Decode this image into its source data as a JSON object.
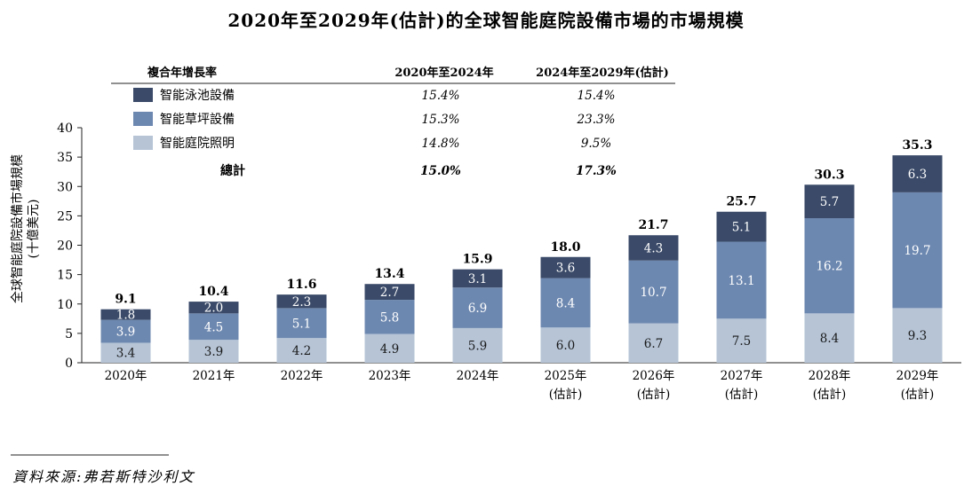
{
  "chart_data": {
    "type": "bar",
    "stacked": true,
    "title": "2020年至2029年(估計)的全球智能庭院設備市場的市場規模",
    "ylabel": "全球智能庭院設備市場規模",
    "ylabel_unit": "(十億美元)",
    "ylim": [
      0,
      40
    ],
    "yticks": [
      0,
      5,
      10,
      15,
      20,
      25,
      30,
      35,
      40
    ],
    "categories": [
      {
        "line1": "2020年",
        "line2": ""
      },
      {
        "line1": "2021年",
        "line2": ""
      },
      {
        "line1": "2022年",
        "line2": ""
      },
      {
        "line1": "2023年",
        "line2": ""
      },
      {
        "line1": "2024年",
        "line2": ""
      },
      {
        "line1": "2025年",
        "line2": "(估計)"
      },
      {
        "line1": "2026年",
        "line2": "(估計)"
      },
      {
        "line1": "2027年",
        "line2": "(估計)"
      },
      {
        "line1": "2028年",
        "line2": "(估計)"
      },
      {
        "line1": "2029年",
        "line2": "(估計)"
      }
    ],
    "series": [
      {
        "name": "智能庭院照明",
        "color": "#b6c4d6",
        "label_color": "#1a1a1a",
        "values": [
          3.4,
          3.9,
          4.2,
          4.9,
          5.9,
          6.0,
          6.7,
          7.5,
          8.4,
          9.3
        ]
      },
      {
        "name": "智能草坪設備",
        "color": "#6d88b0",
        "label_color": "#ffffff",
        "values": [
          3.9,
          4.5,
          5.1,
          5.8,
          6.9,
          8.4,
          10.7,
          13.1,
          16.2,
          19.7
        ]
      },
      {
        "name": "智能泳池設備",
        "color": "#3a4a68",
        "label_color": "#ffffff",
        "values": [
          1.8,
          2.0,
          2.3,
          2.7,
          3.1,
          3.6,
          4.3,
          5.1,
          5.7,
          6.3
        ]
      }
    ],
    "totals": [
      9.1,
      10.4,
      11.6,
      13.4,
      15.9,
      18.0,
      21.7,
      25.7,
      30.3,
      35.3
    ],
    "cagr_table": {
      "header": "複合年增長率",
      "period1": "2020年至2024年",
      "period2": "2024年至2029年(估計)",
      "rows": [
        {
          "name": "智能泳池設備",
          "p1": "15.4%",
          "p2": "15.4%"
        },
        {
          "name": "智能草坪設備",
          "p1": "15.3%",
          "p2": "23.3%"
        },
        {
          "name": "智能庭院照明",
          "p1": "14.8%",
          "p2": "9.5%"
        }
      ],
      "total": {
        "name": "總計",
        "p1": "15.0%",
        "p2": "17.3%"
      }
    },
    "legend_position": "top-left",
    "grid": false
  },
  "source": "資料來源:弗若斯特沙利文"
}
